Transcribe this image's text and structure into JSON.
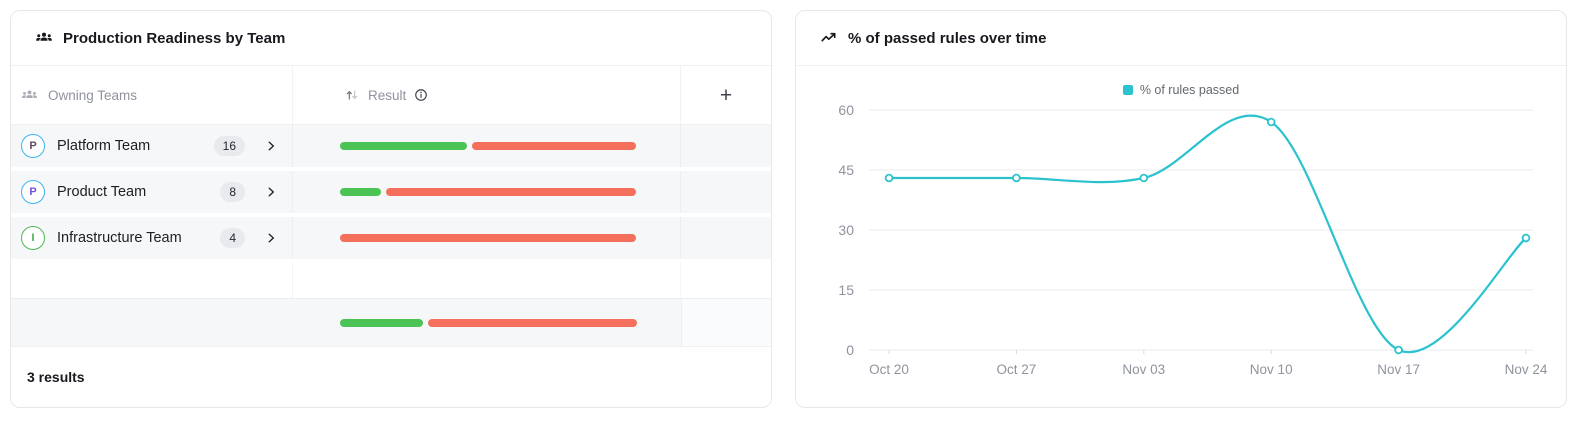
{
  "left_card": {
    "title": "Production Readiness by Team",
    "table": {
      "col_team": "Owning Teams",
      "col_result": "Result",
      "add_button": "+"
    },
    "rows": [
      {
        "team": "Platform Team",
        "initial": "P",
        "count": "16",
        "passed_pct": 43,
        "ring": "#3ab5ef",
        "letter": "#5f4a5e"
      },
      {
        "team": "Product Team",
        "initial": "P",
        "count": "8",
        "passed_pct": 14,
        "ring": "#3ab5ef",
        "letter": "#6f52d9"
      },
      {
        "team": "Infrastructure Team",
        "initial": "I",
        "count": "4",
        "passed_pct": 0,
        "ring": "#4cba52",
        "letter": "#41af49"
      }
    ],
    "summary_passed_pct": 28,
    "footer": "3 results",
    "passed_color": "#4bc455",
    "failed_color": "#f4705c"
  },
  "right_card": {
    "title": "% of passed rules over time",
    "legend": "% of rules passed"
  },
  "chart_data": {
    "type": "line",
    "title": "% of passed rules over time",
    "x": [
      "Oct 20",
      "Oct 27",
      "Nov 03",
      "Nov 10",
      "Nov 17",
      "Nov 24"
    ],
    "series": [
      {
        "name": "% of rules passed",
        "values": [
          43,
          43,
          43,
          57,
          0,
          28
        ]
      }
    ],
    "ylim": [
      0,
      60
    ],
    "yticks": [
      0,
      15,
      30,
      45,
      60
    ],
    "grid": true,
    "legend_position": "top-center",
    "line_color": "#2bc2cf",
    "smooth": true,
    "marker": "open-circle",
    "axis_text_color": "#8f939d",
    "grid_color": "#e9ebed"
  }
}
